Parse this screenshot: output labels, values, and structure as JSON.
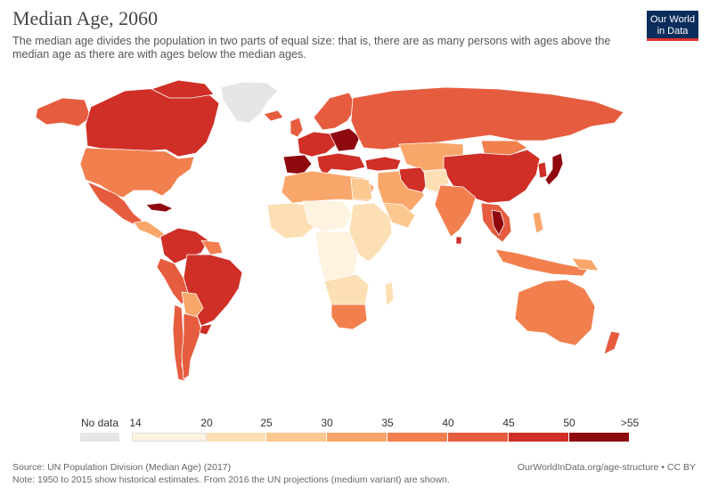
{
  "title": "Median Age, 2060",
  "subtitle": "The median age divides the population in two parts of equal size: that is, there are as many persons with ages above the median age as there are with ages below the median ages.",
  "logo": {
    "line1": "Our World",
    "line2": "in Data"
  },
  "legend": {
    "nodata_label": "No data",
    "nodata_color": "#e6e6e6",
    "bins": [
      {
        "from": "14",
        "to": "20",
        "color": "#fef2e0"
      },
      {
        "from": "20",
        "to": "25",
        "color": "#fcdfb4"
      },
      {
        "from": "25",
        "to": "30",
        "color": "#fbc88f"
      },
      {
        "from": "30",
        "to": "35",
        "color": "#f9a66b"
      },
      {
        "from": "35",
        "to": "40",
        "color": "#f2804f"
      },
      {
        "from": "40",
        "to": "45",
        "color": "#e65c3f"
      },
      {
        "from": "45",
        "to": "50",
        "color": "#cf2f27"
      },
      {
        "from": "50",
        "to": ">55",
        "color": "#8f0a0f"
      }
    ],
    "tick_labels": [
      "14",
      "20",
      "25",
      "30",
      "35",
      "40",
      "45",
      "50",
      ">55"
    ]
  },
  "colors": {
    "ocean": "#ffffff",
    "border": "#ffffff",
    "greenland": "#e6e6e6"
  },
  "source": "Source: UN Population Division (Median Age) (2017)",
  "note": "Note: 1950 to 2015 show historical estimates. From 2016 the UN projections (medium variant) are shown.",
  "url": "OurWorldInData.org/age-structure • CC BY"
}
